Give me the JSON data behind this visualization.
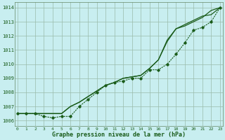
{
  "background_color": "#c8eef0",
  "grid_color": "#99bbaa",
  "line_color": "#1a5c1a",
  "title": "Graphe pression niveau de la mer (hPa)",
  "ylabel_ticks": [
    1006,
    1007,
    1008,
    1009,
    1010,
    1011,
    1012,
    1013,
    1014
  ],
  "xticks": [
    0,
    1,
    2,
    3,
    4,
    5,
    6,
    7,
    8,
    9,
    10,
    11,
    12,
    13,
    14,
    15,
    16,
    17,
    18,
    19,
    20,
    21,
    22,
    23
  ],
  "ylim": [
    1005.6,
    1014.4
  ],
  "xlim": [
    -0.3,
    23.3
  ],
  "series1": [
    1006.5,
    1006.5,
    1006.5,
    1006.5,
    1006.5,
    1006.5,
    1007.0,
    1007.3,
    1007.7,
    1008.1,
    1008.5,
    1008.7,
    1009.0,
    1009.1,
    1009.2,
    1009.6,
    1010.3,
    1011.5,
    1012.5,
    1012.7,
    1013.0,
    1013.3,
    1013.4,
    1014.0
  ],
  "series2": [
    1006.5,
    1006.5,
    1006.5,
    1006.5,
    1006.5,
    1006.5,
    1007.0,
    1007.3,
    1007.7,
    1008.1,
    1008.5,
    1008.7,
    1009.0,
    1009.1,
    1009.2,
    1009.6,
    1010.3,
    1011.7,
    1012.5,
    1012.7,
    1013.0,
    1013.3,
    1013.8,
    1014.0
  ],
  "series3_with_dip": [
    1006.5,
    1006.5,
    1006.5,
    1006.5,
    1006.3,
    1006.3,
    1006.3,
    1007.0,
    1007.5,
    1008.0,
    1008.5,
    1008.7,
    1009.0,
    1009.1,
    1009.2,
    1009.6,
    1009.6,
    1010.0,
    1010.7,
    1011.6,
    1012.4,
    1012.7,
    1013.0,
    1014.0
  ],
  "series_dip": [
    1006.5,
    1006.5,
    1006.5,
    1006.3,
    1006.2,
    1006.3,
    1006.3,
    1007.3,
    1007.8,
    1008.2,
    1008.5,
    1008.7,
    1009.0,
    1009.1,
    1009.2,
    1009.6,
    1009.6,
    1010.0,
    1010.7,
    1011.6,
    1012.4,
    1012.7,
    1013.0,
    1014.0
  ]
}
